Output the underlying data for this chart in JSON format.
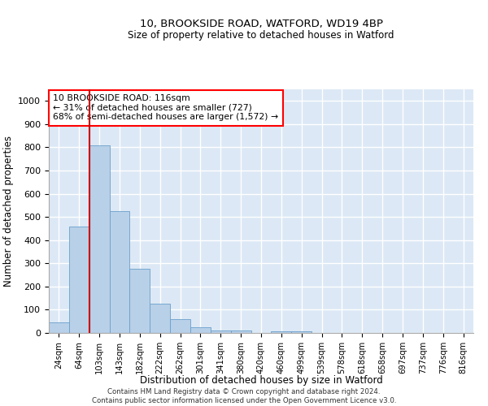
{
  "title1": "10, BROOKSIDE ROAD, WATFORD, WD19 4BP",
  "title2": "Size of property relative to detached houses in Watford",
  "xlabel": "Distribution of detached houses by size in Watford",
  "ylabel": "Number of detached properties",
  "bar_labels": [
    "24sqm",
    "64sqm",
    "103sqm",
    "143sqm",
    "182sqm",
    "222sqm",
    "262sqm",
    "301sqm",
    "341sqm",
    "380sqm",
    "420sqm",
    "460sqm",
    "499sqm",
    "539sqm",
    "578sqm",
    "618sqm",
    "658sqm",
    "697sqm",
    "737sqm",
    "776sqm",
    "816sqm"
  ],
  "bar_values": [
    46,
    460,
    810,
    525,
    275,
    125,
    60,
    25,
    12,
    12,
    0,
    8,
    8,
    0,
    0,
    0,
    0,
    0,
    0,
    0,
    0
  ],
  "bar_color": "#b8d0e8",
  "bar_edge_color": "#6aa0cc",
  "annotation_box_text": "10 BROOKSIDE ROAD: 116sqm\n← 31% of detached houses are smaller (727)\n68% of semi-detached houses are larger (1,572) →",
  "vline_x_index": 2,
  "vline_color": "#cc0000",
  "ylim": [
    0,
    1050
  ],
  "yticks": [
    0,
    100,
    200,
    300,
    400,
    500,
    600,
    700,
    800,
    900,
    1000
  ],
  "bg_color": "#dce8f5",
  "grid_color": "#ffffff",
  "footer1": "Contains HM Land Registry data © Crown copyright and database right 2024.",
  "footer2": "Contains public sector information licensed under the Open Government Licence v3.0."
}
